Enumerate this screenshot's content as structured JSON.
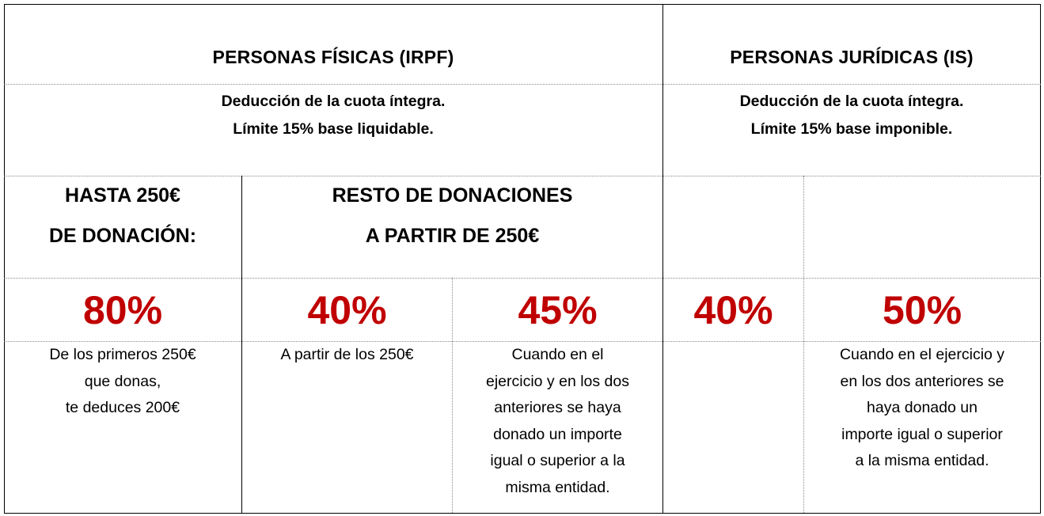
{
  "irpf": {
    "header": "PERSONAS FÍSICAS (IRPF)",
    "subheader_line1": "Deducción de la cuota íntegra.",
    "subheader_line2": "Límite 15% base liquidable.",
    "col1_title_line1": "HASTA 250€",
    "col1_title_line2": "DE DONACIÓN:",
    "col2_title_line1": "RESTO DE DONACIONES",
    "col2_title_line2": "A PARTIR DE 250€",
    "pct_80": "80%",
    "pct_40": "40%",
    "pct_45": "45%",
    "desc_80": [
      "De los primeros 250€",
      "que donas,",
      "te deduces 200€"
    ],
    "desc_40": [
      "A partir de los 250€"
    ],
    "desc_45": [
      "Cuando en el",
      "ejercicio y en los dos",
      "anteriores se haya",
      "donado un importe",
      "igual o superior a la",
      "misma entidad."
    ]
  },
  "is": {
    "header": "PERSONAS JURÍDICAS (IS)",
    "subheader_line1": "Deducción de la cuota íntegra.",
    "subheader_line2": "Límite 15% base imponible.",
    "pct_40": "40%",
    "pct_50": "50%",
    "desc_50": [
      "Cuando en el ejercicio y",
      "en los dos anteriores se",
      "haya donado un",
      "importe igual o superior",
      "a la misma entidad."
    ]
  },
  "colors": {
    "percentage": "#c00000",
    "text": "#000000"
  }
}
